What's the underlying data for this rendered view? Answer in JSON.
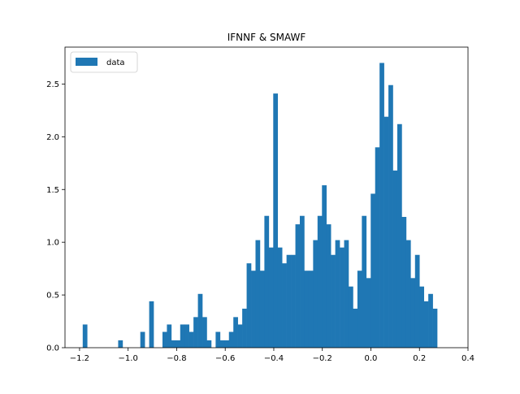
{
  "chart_data": {
    "type": "bar",
    "title": "IFNNF & SMAWF",
    "xlabel": "",
    "ylabel": "",
    "xlim": [
      -1.26,
      0.4
    ],
    "ylim": [
      0,
      2.85
    ],
    "xticks": [
      -1.2,
      -1.0,
      -0.8,
      -0.6,
      -0.4,
      -0.2,
      0.0,
      0.2,
      0.4
    ],
    "xtick_labels": [
      "−1.2",
      "−1.0",
      "−0.8",
      "−0.6",
      "−0.4",
      "−0.2",
      "0.0",
      "0.2",
      "0.4"
    ],
    "yticks": [
      0.0,
      0.5,
      1.0,
      1.5,
      2.0,
      2.5
    ],
    "ytick_labels": [
      "0.0",
      "0.5",
      "1.0",
      "1.5",
      "2.0",
      "2.5"
    ],
    "grid": false,
    "legend": {
      "position": "top-left",
      "entries": [
        "data"
      ]
    },
    "series": [
      {
        "name": "data",
        "color": "#1f77b4",
        "bin_start": -1.187,
        "bin_width": 0.01825,
        "values": [
          0.22,
          0,
          0,
          0,
          0,
          0,
          0,
          0,
          0.07,
          0,
          0,
          0,
          0,
          0.15,
          0,
          0.44,
          0,
          0,
          0.15,
          0.22,
          0.07,
          0.07,
          0.22,
          0.22,
          0.15,
          0.29,
          0.51,
          0.29,
          0.07,
          0,
          0.15,
          0.07,
          0.07,
          0.15,
          0.29,
          0.22,
          0.37,
          0.8,
          0.73,
          1.02,
          0.73,
          1.25,
          0.95,
          2.41,
          0.95,
          0.8,
          0.88,
          0.88,
          1.17,
          1.25,
          0.73,
          0.73,
          1.02,
          1.25,
          1.54,
          1.17,
          0.88,
          1.02,
          0.95,
          1.02,
          0.58,
          0.37,
          0.73,
          1.25,
          0.66,
          1.46,
          1.9,
          2.7,
          2.19,
          2.49,
          1.68,
          2.12,
          1.24,
          1.02,
          0.66,
          0.88,
          0.58,
          0.44,
          0.51,
          0.37
        ]
      }
    ]
  }
}
